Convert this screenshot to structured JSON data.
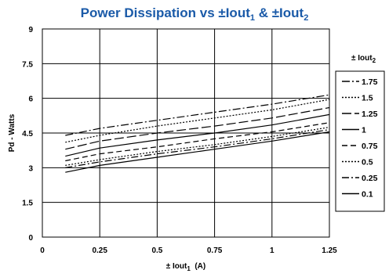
{
  "chart_data": {
    "type": "line",
    "title": "Power Dissipation vs ±Iout",
    "title_sub1": "1",
    "title_mid": " & ±Iout",
    "title_sub2": "2",
    "xlabel": "± Iout",
    "xlabel_sub": "1",
    "xlabel_unit": "  (A)",
    "ylabel": "Pd - Watts",
    "xlim": [
      0,
      1.25
    ],
    "ylim": [
      0,
      9
    ],
    "x_ticks": [
      "0",
      "0.25",
      "0.5",
      "0.75",
      "1",
      "1.25"
    ],
    "y_ticks": [
      "0",
      "1.5",
      "3",
      "4.5",
      "6",
      "7.5",
      "9"
    ],
    "grid": true,
    "legend_position": "right",
    "legend_title": "± Iout",
    "legend_title_sub": "2",
    "x": [
      0.1,
      0.25,
      0.5,
      0.75,
      1.0,
      1.25
    ],
    "series": [
      {
        "name": "1.75",
        "dash": "10,3,2,3",
        "values": [
          4.4,
          4.7,
          5.05,
          5.4,
          5.75,
          6.15
        ]
      },
      {
        "name": "1.5",
        "dash": "2,2",
        "values": [
          4.1,
          4.4,
          4.8,
          5.15,
          5.5,
          5.95
        ]
      },
      {
        "name": "1.25",
        "dash": "12,4",
        "values": [
          3.8,
          4.15,
          4.5,
          4.8,
          5.15,
          5.6
        ]
      },
      {
        "name": "1",
        "dash": "",
        "values": [
          3.5,
          3.85,
          4.2,
          4.5,
          4.85,
          5.3
        ]
      },
      {
        "name": "0.75",
        "dash": "7,4",
        "values": [
          3.3,
          3.6,
          3.9,
          4.25,
          4.55,
          4.95
        ]
      },
      {
        "name": "0.5",
        "dash": "2,2",
        "values": [
          3.1,
          3.35,
          3.7,
          4.0,
          4.35,
          4.75
        ]
      },
      {
        "name": "0.25",
        "dash": "9,3,2,3",
        "values": [
          3.0,
          3.25,
          3.6,
          3.9,
          4.25,
          4.65
        ]
      },
      {
        "name": "0.1",
        "dash": "",
        "values": [
          2.8,
          3.1,
          3.45,
          3.8,
          4.15,
          4.55
        ]
      }
    ]
  }
}
